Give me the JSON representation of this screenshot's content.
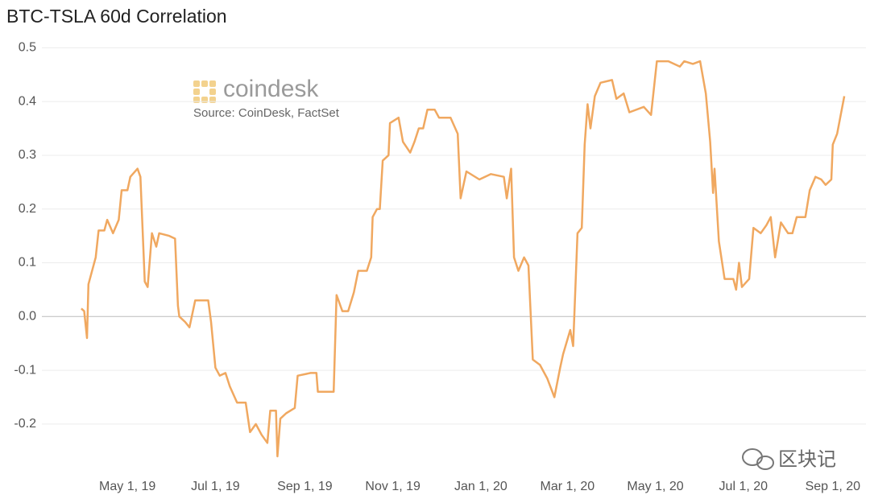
{
  "chart_data": {
    "type": "line",
    "title": "BTC-TSLA 60d Correlation",
    "annotations": {
      "brand": "coindesk",
      "source": "Source: CoinDesk, FactSet",
      "watermark": "区块记"
    },
    "color": "#f0a860",
    "x": [
      "2019-03-30",
      "2019-04-01",
      "2019-04-03",
      "2019-04-04",
      "2019-04-09",
      "2019-04-11",
      "2019-04-15",
      "2019-04-17",
      "2019-04-21",
      "2019-04-25",
      "2019-04-27",
      "2019-05-01",
      "2019-05-03",
      "2019-05-08",
      "2019-05-10",
      "2019-05-13",
      "2019-05-15",
      "2019-05-18",
      "2019-05-21",
      "2019-05-23",
      "2019-05-30",
      "2019-06-03",
      "2019-06-05",
      "2019-06-06",
      "2019-06-10",
      "2019-06-13",
      "2019-06-17",
      "2019-06-21",
      "2019-06-26",
      "2019-06-28",
      "2019-07-01",
      "2019-07-04",
      "2019-07-08",
      "2019-07-11",
      "2019-07-16",
      "2019-07-22",
      "2019-07-25",
      "2019-07-29",
      "2019-08-02",
      "2019-08-06",
      "2019-08-08",
      "2019-08-12",
      "2019-08-13",
      "2019-08-15",
      "2019-08-19",
      "2019-08-25",
      "2019-08-27",
      "2019-09-05",
      "2019-09-09",
      "2019-09-10",
      "2019-09-16",
      "2019-09-21",
      "2019-09-23",
      "2019-09-27",
      "2019-10-01",
      "2019-10-05",
      "2019-10-08",
      "2019-10-14",
      "2019-10-17",
      "2019-10-18",
      "2019-10-21",
      "2019-10-23",
      "2019-10-25",
      "2019-10-29",
      "2019-10-30",
      "2019-11-05",
      "2019-11-08",
      "2019-11-13",
      "2019-11-16",
      "2019-11-19",
      "2019-11-22",
      "2019-11-25",
      "2019-11-30",
      "2019-12-03",
      "2019-12-11",
      "2019-12-16",
      "2019-12-18",
      "2019-12-22",
      "2019-12-31",
      "2020-01-08",
      "2020-01-17",
      "2020-01-19",
      "2020-01-22",
      "2020-01-24",
      "2020-01-27",
      "2020-01-31",
      "2020-02-03",
      "2020-02-06",
      "2020-02-11",
      "2020-02-16",
      "2020-02-21",
      "2020-02-25",
      "2020-02-27",
      "2020-03-03",
      "2020-03-05",
      "2020-03-08",
      "2020-03-11",
      "2020-03-13",
      "2020-03-15",
      "2020-03-17",
      "2020-03-20",
      "2020-03-24",
      "2020-04-01",
      "2020-04-04",
      "2020-04-09",
      "2020-04-13",
      "2020-04-23",
      "2020-04-28",
      "2020-05-02",
      "2020-05-10",
      "2020-05-18",
      "2020-05-21",
      "2020-05-27",
      "2020-06-01",
      "2020-06-05",
      "2020-06-08",
      "2020-06-10",
      "2020-06-11",
      "2020-06-14",
      "2020-06-18",
      "2020-06-24",
      "2020-06-26",
      "2020-06-28",
      "2020-06-30",
      "2020-07-05",
      "2020-07-08",
      "2020-07-13",
      "2020-07-17",
      "2020-07-20",
      "2020-07-23",
      "2020-07-27",
      "2020-08-01",
      "2020-08-04",
      "2020-08-07",
      "2020-08-13",
      "2020-08-16",
      "2020-08-20",
      "2020-08-24",
      "2020-08-27",
      "2020-08-31",
      "2020-09-01",
      "2020-09-04",
      "2020-09-09"
    ],
    "values": [
      0.015,
      0.01,
      -0.04,
      0.06,
      0.11,
      0.16,
      0.16,
      0.18,
      0.155,
      0.18,
      0.235,
      0.235,
      0.26,
      0.275,
      0.26,
      0.065,
      0.055,
      0.155,
      0.13,
      0.155,
      0.15,
      0.145,
      0.02,
      0.0,
      -0.01,
      -0.02,
      0.03,
      0.03,
      0.03,
      -0.01,
      -0.095,
      -0.11,
      -0.105,
      -0.13,
      -0.16,
      -0.16,
      -0.215,
      -0.2,
      -0.22,
      -0.235,
      -0.175,
      -0.175,
      -0.26,
      -0.19,
      -0.18,
      -0.17,
      -0.11,
      -0.105,
      -0.105,
      -0.14,
      -0.14,
      -0.14,
      0.04,
      0.01,
      0.01,
      0.045,
      0.085,
      0.085,
      0.11,
      0.185,
      0.2,
      0.2,
      0.29,
      0.3,
      0.36,
      0.37,
      0.325,
      0.305,
      0.325,
      0.35,
      0.35,
      0.385,
      0.385,
      0.37,
      0.37,
      0.34,
      0.22,
      0.27,
      0.255,
      0.265,
      0.26,
      0.22,
      0.275,
      0.11,
      0.085,
      0.11,
      0.095,
      -0.08,
      -0.09,
      -0.115,
      -0.15,
      -0.095,
      -0.07,
      -0.025,
      -0.055,
      0.155,
      0.165,
      0.32,
      0.395,
      0.35,
      0.41,
      0.435,
      0.44,
      0.405,
      0.415,
      0.38,
      0.39,
      0.375,
      0.475,
      0.475,
      0.465,
      0.475,
      0.47,
      0.475,
      0.415,
      0.325,
      0.23,
      0.275,
      0.14,
      0.07,
      0.07,
      0.05,
      0.1,
      0.055,
      0.07,
      0.165,
      0.155,
      0.17,
      0.185,
      0.11,
      0.175,
      0.155,
      0.155,
      0.185,
      0.185,
      0.235,
      0.26,
      0.255,
      0.245,
      0.255,
      0.32,
      0.34,
      0.41
    ],
    "xlim": [
      "2019-02-24",
      "2020-09-24"
    ],
    "xticks": [
      {
        "value": "2019-05-01",
        "label": "May 1, 19"
      },
      {
        "value": "2019-07-01",
        "label": "Jul 1, 19"
      },
      {
        "value": "2019-09-01",
        "label": "Sep 1, 19"
      },
      {
        "value": "2019-11-01",
        "label": "Nov 1, 19"
      },
      {
        "value": "2020-01-01",
        "label": "Jan 1, 20"
      },
      {
        "value": "2020-03-01",
        "label": "Mar 1, 20"
      },
      {
        "value": "2020-05-01",
        "label": "May 1, 20"
      },
      {
        "value": "2020-07-01",
        "label": "Jul 1, 20"
      },
      {
        "value": "2020-09-01",
        "label": "Sep 1, 20"
      }
    ],
    "ylim": [
      -0.29,
      0.52
    ],
    "yticks": [
      0.5,
      0.4,
      0.3,
      0.2,
      0.1,
      {
        "value": 0,
        "label": "0.0"
      },
      -0.1,
      -0.2
    ],
    "grid": true
  }
}
